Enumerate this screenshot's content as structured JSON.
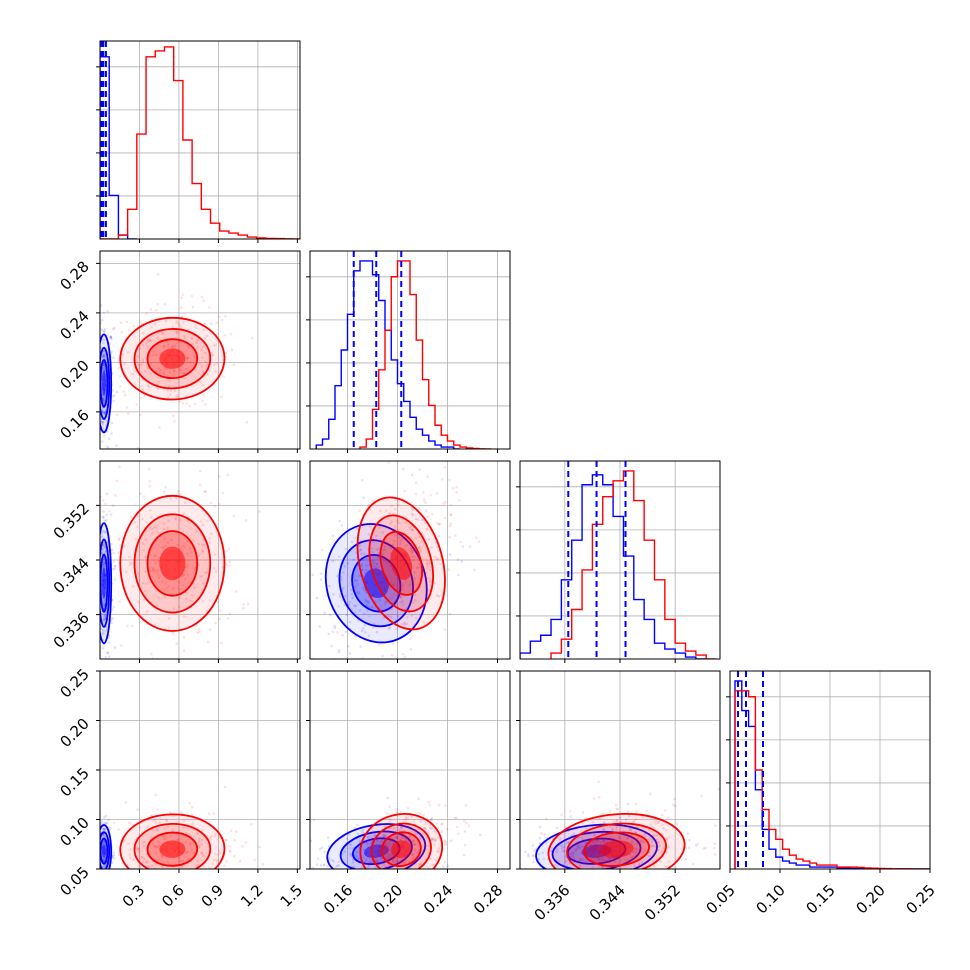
{
  "colors": {
    "blue": "#0000ff",
    "red": "#ff0000",
    "grid": "#b0b0b0",
    "frame": "#000000"
  },
  "chart_data": {
    "type": "corner",
    "grid": true,
    "parameters": [
      {
        "index": 0,
        "range": [
          0.0,
          1.52
        ],
        "ticks": [
          "0.3",
          "0.6",
          "0.9",
          "1.2",
          "1.5"
        ],
        "tick_values": [
          0.3,
          0.6,
          0.9,
          1.2,
          1.5
        ]
      },
      {
        "index": 1,
        "range": [
          0.13,
          0.29
        ],
        "ticks": [
          "0.16",
          "0.20",
          "0.24",
          "0.28"
        ],
        "tick_values": [
          0.16,
          0.2,
          0.24,
          0.28
        ]
      },
      {
        "index": 2,
        "range": [
          0.3295,
          0.3585
        ],
        "ticks": [
          "0.336",
          "0.344",
          "0.352"
        ],
        "tick_values": [
          0.336,
          0.344,
          0.352
        ]
      },
      {
        "index": 3,
        "range": [
          0.05,
          0.25
        ],
        "ticks": [
          "0.05",
          "0.10",
          "0.15",
          "0.20",
          "0.25"
        ],
        "tick_values": [
          0.05,
          0.1,
          0.15,
          0.2,
          0.25
        ]
      }
    ],
    "series": [
      {
        "color": "#0000ff",
        "marginals": [
          {
            "x": [
              0.0,
              0.07,
              0.14,
              0.21
            ],
            "values": [
              0.92,
              0.22,
              0.02,
              0
            ]
          },
          {
            "x": [
              0.135,
              0.14,
              0.145,
              0.15,
              0.155,
              0.16,
              0.165,
              0.17,
              0.175,
              0.18,
              0.185,
              0.19,
              0.195,
              0.2,
              0.205,
              0.21,
              0.215,
              0.22,
              0.225,
              0.23,
              0.235,
              0.24,
              0.245
            ],
            "values": [
              0.02,
              0.05,
              0.15,
              0.32,
              0.5,
              0.68,
              0.9,
              0.95,
              0.95,
              0.88,
              0.75,
              0.6,
              0.45,
              0.33,
              0.24,
              0.16,
              0.1,
              0.07,
              0.04,
              0.02,
              0.01,
              0.01,
              0
            ]
          },
          {
            "x": [
              0.3295,
              0.331,
              0.3325,
              0.334,
              0.3355,
              0.337,
              0.3385,
              0.34,
              0.3415,
              0.343,
              0.3445,
              0.346,
              0.3475,
              0.349,
              0.3505,
              0.352,
              0.3535,
              0.355
            ],
            "values": [
              0.03,
              0.09,
              0.12,
              0.2,
              0.4,
              0.6,
              0.88,
              0.93,
              0.88,
              0.72,
              0.52,
              0.3,
              0.2,
              0.08,
              0.05,
              0.03,
              0.01,
              0
            ]
          },
          {
            "x": [
              0.055,
              0.0618,
              0.0686,
              0.0754,
              0.0822,
              0.089,
              0.0958,
              0.1026,
              0.1094,
              0.1162,
              0.123,
              0.1298,
              0.1366,
              0.1434,
              0.1502,
              0.157,
              0.1638,
              0.1706,
              0.1774,
              0.1842,
              0.191,
              0.1978,
              0.2046,
              0.2114,
              0.2182,
              0.225,
              0.2318,
              0.2386,
              0.2454
            ],
            "values": [
              0.95,
              0.8,
              0.72,
              0.4,
              0.2,
              0.1,
              0.06,
              0.04,
              0.03,
              0.02,
              0.02,
              0.01,
              0.01,
              0.01,
              0.01,
              0.005,
              0.005,
              0.003,
              0.002,
              0.002,
              0.001,
              0.001,
              0.001,
              0,
              0,
              0,
              0,
              0,
              0
            ]
          }
        ],
        "quantiles": [
          [
            0.012,
            0.025,
            0.045
          ],
          [
            0.165,
            0.183,
            0.203
          ],
          [
            0.3365,
            0.3406,
            0.3448
          ],
          [
            0.058,
            0.066,
            0.083
          ]
        ],
        "means": [
          0.03,
          0.183,
          0.3406,
          0.068
        ],
        "spreads": [
          0.025,
          0.018,
          0.004,
          0.012
        ],
        "correlations": {
          "1-0": 0.0,
          "2-0": 0.0,
          "3-0": 0.0,
          "2-1": 0.45,
          "3-1": 0.55,
          "3-2": 0.35
        }
      },
      {
        "color": "#ff0000",
        "marginals": [
          {
            "x": [
              0.0,
              0.07,
              0.14,
              0.21,
              0.28,
              0.35,
              0.42,
              0.49,
              0.56,
              0.63,
              0.7,
              0.77,
              0.84,
              0.91,
              0.98,
              1.05,
              1.12,
              1.19,
              1.26,
              1.33,
              1.4,
              1.47
            ],
            "values": [
              0,
              0,
              0.02,
              0.15,
              0.53,
              0.92,
              0.95,
              0.97,
              0.8,
              0.5,
              0.28,
              0.15,
              0.08,
              0.04,
              0.03,
              0.02,
              0.01,
              0.005,
              0.003,
              0.002,
              0.001,
              0
            ]
          },
          {
            "x": [
              0.17,
              0.175,
              0.18,
              0.185,
              0.19,
              0.195,
              0.2,
              0.205,
              0.21,
              0.215,
              0.22,
              0.225,
              0.23,
              0.235,
              0.24,
              0.245,
              0.25,
              0.255,
              0.26,
              0.265,
              0.27
            ],
            "values": [
              0.01,
              0.05,
              0.2,
              0.4,
              0.6,
              0.87,
              0.95,
              0.95,
              0.78,
              0.55,
              0.35,
              0.22,
              0.12,
              0.07,
              0.04,
              0.02,
              0.01,
              0.005,
              0.003,
              0.001,
              0
            ]
          },
          {
            "x": [
              0.334,
              0.3355,
              0.337,
              0.3385,
              0.34,
              0.3415,
              0.343,
              0.3445,
              0.346,
              0.3475,
              0.349,
              0.3505,
              0.352,
              0.3535,
              0.355,
              0.3565
            ],
            "values": [
              0.03,
              0.1,
              0.25,
              0.45,
              0.68,
              0.82,
              0.9,
              0.95,
              0.8,
              0.6,
              0.4,
              0.2,
              0.08,
              0.04,
              0.02,
              0
            ]
          },
          {
            "x": [
              0.055,
              0.0618,
              0.0686,
              0.0754,
              0.0822,
              0.089,
              0.0958,
              0.1026,
              0.1094,
              0.1162,
              0.123,
              0.1298,
              0.1366,
              0.1434,
              0.1502,
              0.157,
              0.1638,
              0.1706,
              0.1774,
              0.1842,
              0.191,
              0.1978,
              0.2046,
              0.2114,
              0.2182,
              0.225,
              0.2318,
              0.2386,
              0.2454
            ],
            "values": [
              0.9,
              0.9,
              0.87,
              0.5,
              0.3,
              0.2,
              0.15,
              0.1,
              0.07,
              0.05,
              0.04,
              0.03,
              0.02,
              0.02,
              0.02,
              0.01,
              0.01,
              0.01,
              0.008,
              0.005,
              0.004,
              0.003,
              0.002,
              0.001,
              0.001,
              0.001,
              0,
              0,
              0
            ]
          }
        ],
        "quantiles": [],
        "means": [
          0.55,
          0.203,
          0.3435,
          0.07
        ],
        "spreads": [
          0.18,
          0.015,
          0.0045,
          0.016
        ],
        "correlations": {
          "1-0": 0.05,
          "2-0": 0.0,
          "3-0": 0.05,
          "2-1": 0.3,
          "3-1": 0.5,
          "3-2": 0.3
        }
      }
    ]
  }
}
